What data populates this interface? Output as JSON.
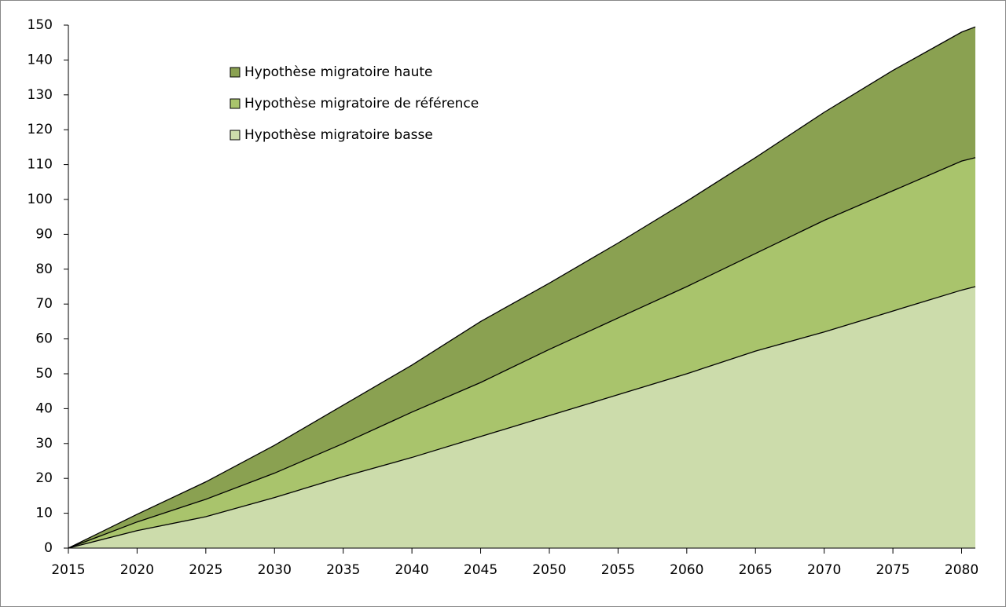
{
  "chart_data": {
    "type": "area",
    "x": [
      2015,
      2020,
      2025,
      2030,
      2035,
      2040,
      2045,
      2050,
      2055,
      2060,
      2065,
      2070,
      2075,
      2080,
      2081
    ],
    "series": [
      {
        "name": "Hypothèse migratoire haute",
        "color": "#8aa151",
        "values": [
          0,
          9.7,
          19,
          29.5,
          41,
          52.5,
          65,
          76,
          87.5,
          99.5,
          112,
          125,
          137,
          148,
          149.5
        ]
      },
      {
        "name": "Hypothèse migratoire de référence",
        "color": "#a9c46c",
        "values": [
          0,
          7.5,
          14,
          21.5,
          30,
          39,
          47.5,
          57,
          66,
          75,
          84.5,
          94,
          102.5,
          111,
          112
        ]
      },
      {
        "name": "Hypothèse migratoire basse",
        "color": "#ccdcab",
        "values": [
          0,
          5,
          9,
          14.5,
          20.5,
          26,
          32,
          38,
          44,
          50,
          56.5,
          62,
          68,
          74,
          75
        ]
      }
    ],
    "xlim": [
      2015,
      2081
    ],
    "xticks": [
      2015,
      2020,
      2025,
      2030,
      2035,
      2040,
      2045,
      2050,
      2055,
      2060,
      2065,
      2070,
      2075,
      2080
    ],
    "ylim": [
      0,
      150
    ],
    "yticks": [
      0,
      10,
      20,
      30,
      40,
      50,
      60,
      70,
      80,
      90,
      100,
      110,
      120,
      130,
      140,
      150
    ],
    "grid": true
  }
}
